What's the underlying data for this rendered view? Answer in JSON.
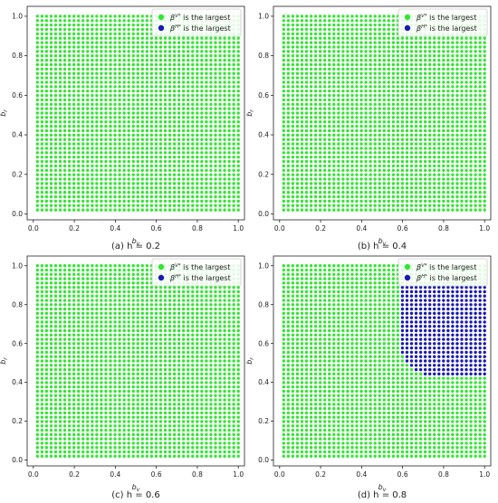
{
  "chart_data": [
    {
      "type": "scatter",
      "caption": "(a) h = 0.2",
      "xlabel": "b_v",
      "ylabel": "b_r",
      "xlim": [
        -0.03,
        1.03
      ],
      "ylim": [
        -0.03,
        1.05
      ],
      "xticks": [
        "0.0",
        "0.2",
        "0.4",
        "0.6",
        "0.8",
        "1.0"
      ],
      "yticks": [
        "0.0",
        "0.2",
        "0.4",
        "0.6",
        "0.8",
        "1.0"
      ],
      "grid": false,
      "legend_position": "top-right",
      "point_grid": {
        "x_range": [
          0.02,
          1.0
        ],
        "y_range": [
          0.02,
          1.0
        ],
        "count_per_axis": 45
      },
      "series": [
        {
          "name": "β^{V*} is the largest",
          "color": "#33e633",
          "region": "all points except blue region"
        },
        {
          "name": "β^{H*} is the largest",
          "color": "#1a1ab3",
          "region": "none"
        }
      ]
    },
    {
      "type": "scatter",
      "caption": "(b) h = 0.4",
      "xlabel": "b_v",
      "ylabel": "b_r",
      "xlim": [
        -0.03,
        1.03
      ],
      "ylim": [
        -0.03,
        1.05
      ],
      "xticks": [
        "0.0",
        "0.2",
        "0.4",
        "0.6",
        "0.8",
        "1.0"
      ],
      "yticks": [
        "0.0",
        "0.2",
        "0.4",
        "0.6",
        "0.8",
        "1.0"
      ],
      "grid": false,
      "legend_position": "top-right",
      "point_grid": {
        "x_range": [
          0.02,
          1.0
        ],
        "y_range": [
          0.02,
          1.0
        ],
        "count_per_axis": 45
      },
      "series": [
        {
          "name": "β^{V*} is the largest",
          "color": "#33e633",
          "region": "all points except blue region"
        },
        {
          "name": "β^{H*} is the largest",
          "color": "#1a1ab3",
          "region": "none"
        }
      ]
    },
    {
      "type": "scatter",
      "caption": "(c) h = 0.6",
      "xlabel": "b_v",
      "ylabel": "b_r",
      "xlim": [
        -0.03,
        1.03
      ],
      "ylim": [
        -0.03,
        1.05
      ],
      "xticks": [
        "0.0",
        "0.2",
        "0.4",
        "0.6",
        "0.8",
        "1.0"
      ],
      "yticks": [
        "0.0",
        "0.2",
        "0.4",
        "0.6",
        "0.8",
        "1.0"
      ],
      "grid": false,
      "legend_position": "top-right",
      "point_grid": {
        "x_range": [
          0.02,
          1.0
        ],
        "y_range": [
          0.02,
          1.0
        ],
        "count_per_axis": 45
      },
      "series": [
        {
          "name": "β^{V*} is the largest",
          "color": "#33e633",
          "region": "all points except blue region"
        },
        {
          "name": "β^{H*} is the largest",
          "color": "#1a1ab3",
          "region": "none"
        }
      ]
    },
    {
      "type": "scatter",
      "caption": "(d) h = 0.8",
      "xlabel": "b_v",
      "ylabel": "b_r",
      "xlim": [
        -0.03,
        1.03
      ],
      "ylim": [
        -0.03,
        1.05
      ],
      "xticks": [
        "0.0",
        "0.2",
        "0.4",
        "0.6",
        "0.8",
        "1.0"
      ],
      "yticks": [
        "0.0",
        "0.2",
        "0.4",
        "0.6",
        "0.8",
        "1.0"
      ],
      "grid": false,
      "legend_position": "top-right",
      "point_grid": {
        "x_range": [
          0.02,
          1.0
        ],
        "y_range": [
          0.02,
          1.0
        ],
        "count_per_axis": 45
      },
      "series": [
        {
          "name": "β^{V*} is the largest",
          "color": "#33e633",
          "region": "all points except blue region"
        },
        {
          "name": "β^{H*} is the largest",
          "color": "#1a1ab3",
          "region": {
            "bv_min": 0.58,
            "br_min": 0.43,
            "br_max": 0.89,
            "corner_center": [
              0.76,
              0.6
            ],
            "corner_radius": 0.17
          }
        }
      ]
    }
  ]
}
